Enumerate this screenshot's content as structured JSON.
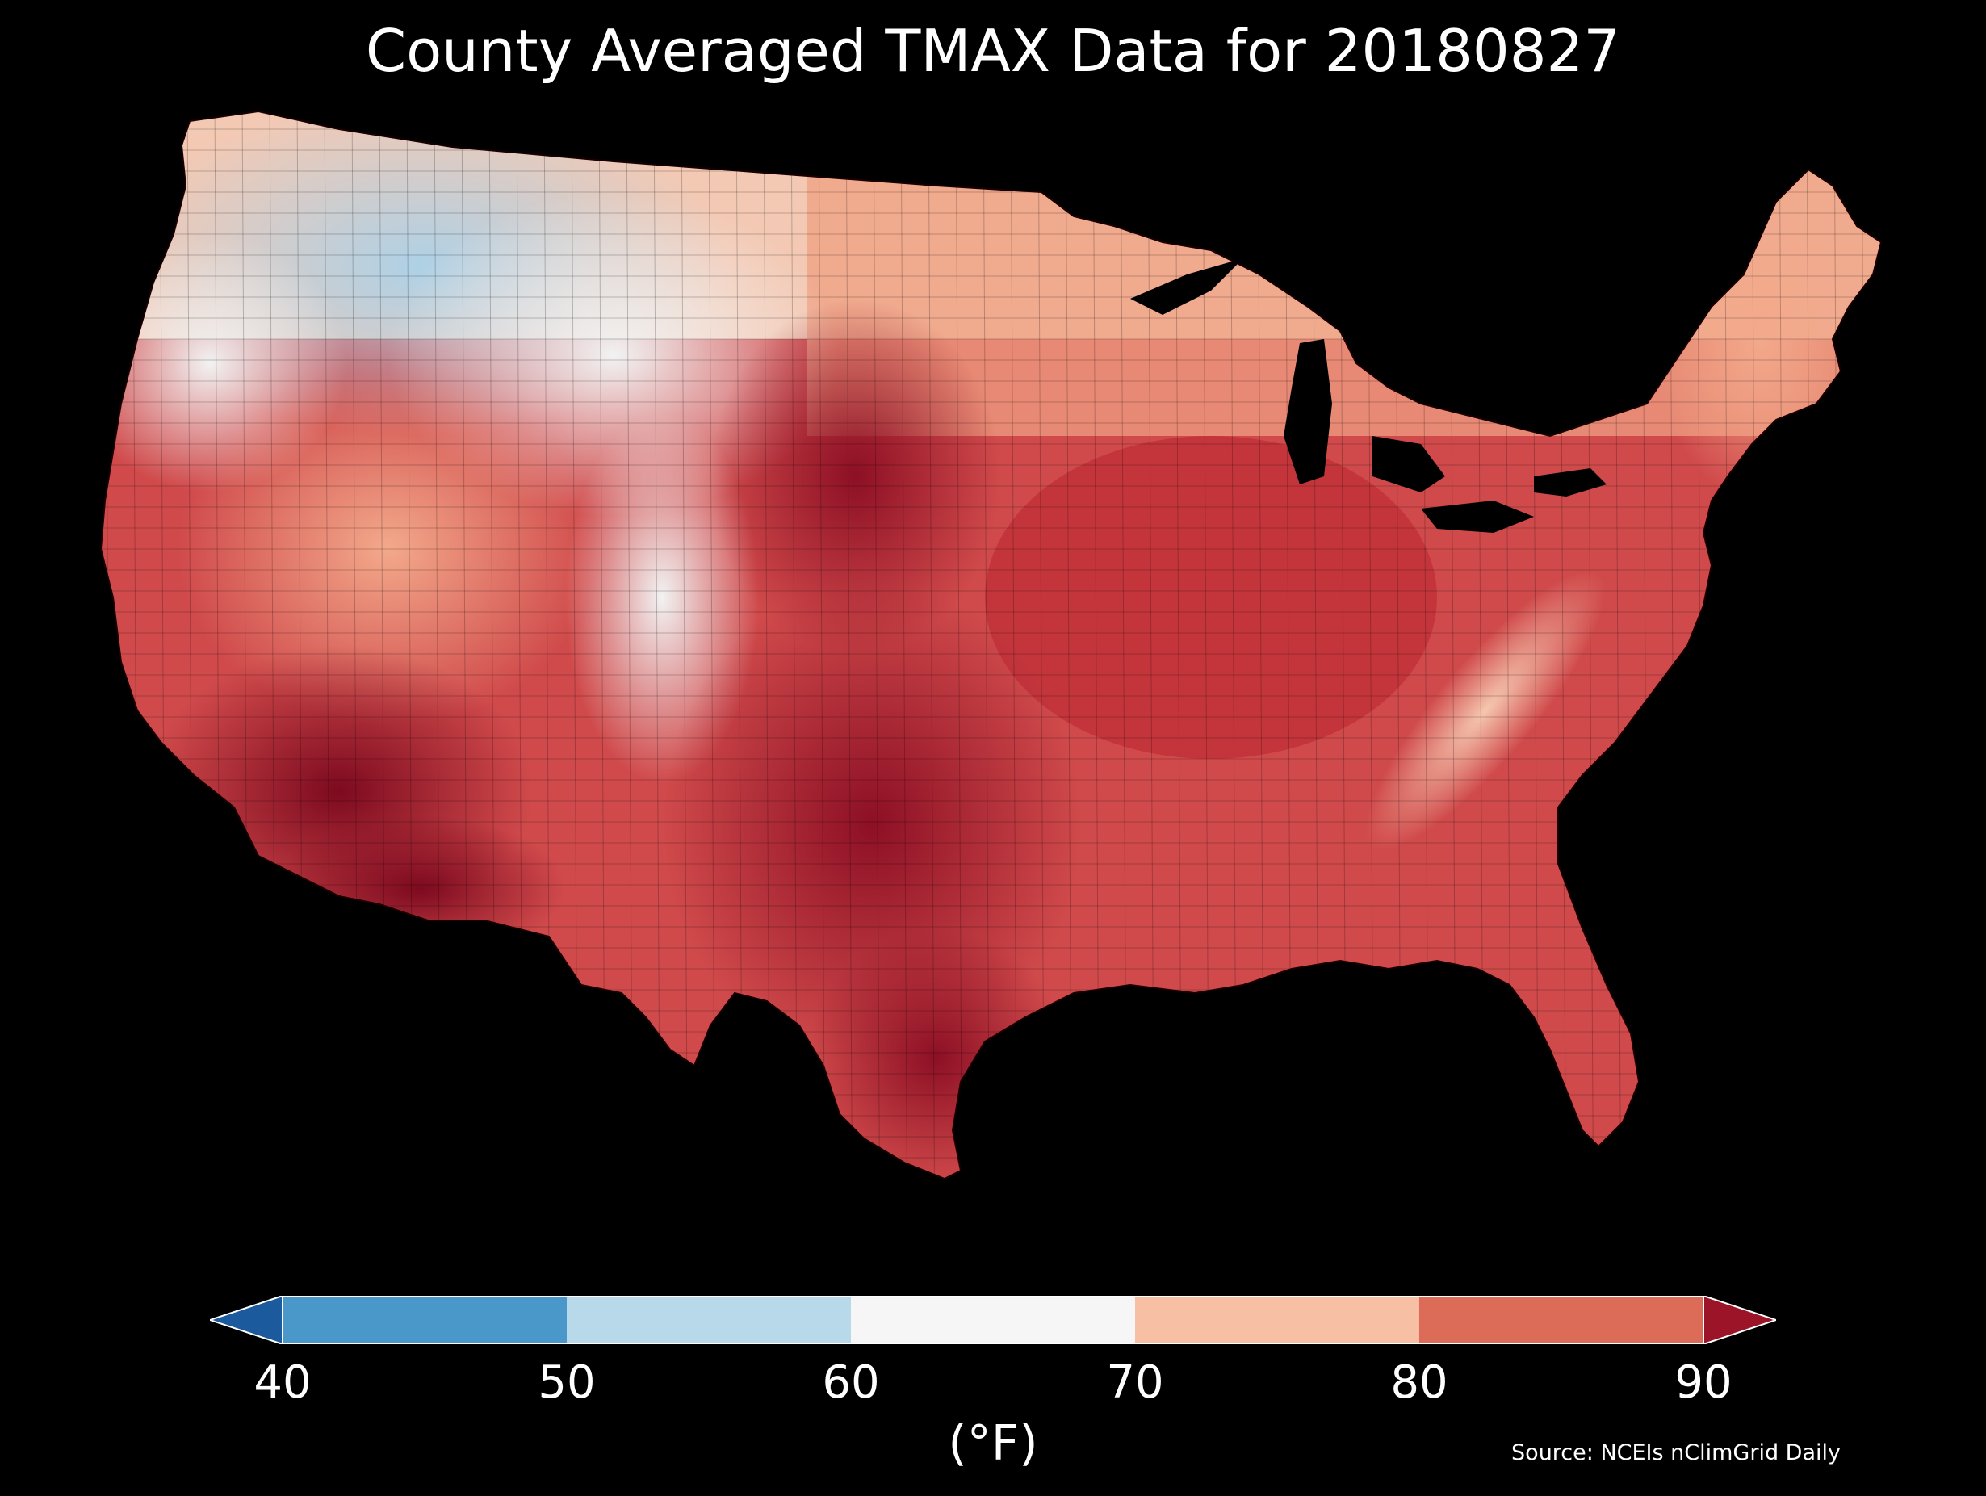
{
  "title": "County Averaged TMAX Data for 20180827",
  "colorbar": {
    "ticks": [
      "40",
      "50",
      "60",
      "70",
      "80",
      "90"
    ],
    "tick_values": [
      40,
      50,
      60,
      70,
      80,
      90
    ],
    "units_label": "(°F)",
    "extend": "both",
    "bins": [
      {
        "min": null,
        "max": 40,
        "color": "#1b5a9c"
      },
      {
        "min": 40,
        "max": 50,
        "color": "#4a98c9"
      },
      {
        "min": 50,
        "max": 60,
        "color": "#b8d9ea"
      },
      {
        "min": 60,
        "max": 70,
        "color": "#f6f6f6"
      },
      {
        "min": 70,
        "max": 80,
        "color": "#f7c0a4"
      },
      {
        "min": 80,
        "max": 90,
        "color": "#dc6b57"
      },
      {
        "min": 90,
        "max": null,
        "color": "#9b1428"
      }
    ]
  },
  "source": "Source: NCEIs nClimGrid Daily",
  "map": {
    "region": "Contiguous United States",
    "variable": "TMAX",
    "background_color": "#000000",
    "shading_colors": {
      "cool": "#c6ddec",
      "pale": "#eef2f6",
      "warm_light": "#f8d6c4",
      "warm": "#eb9a7c",
      "hot": "#c83a3f",
      "hottest": "#7d0a1f"
    }
  }
}
